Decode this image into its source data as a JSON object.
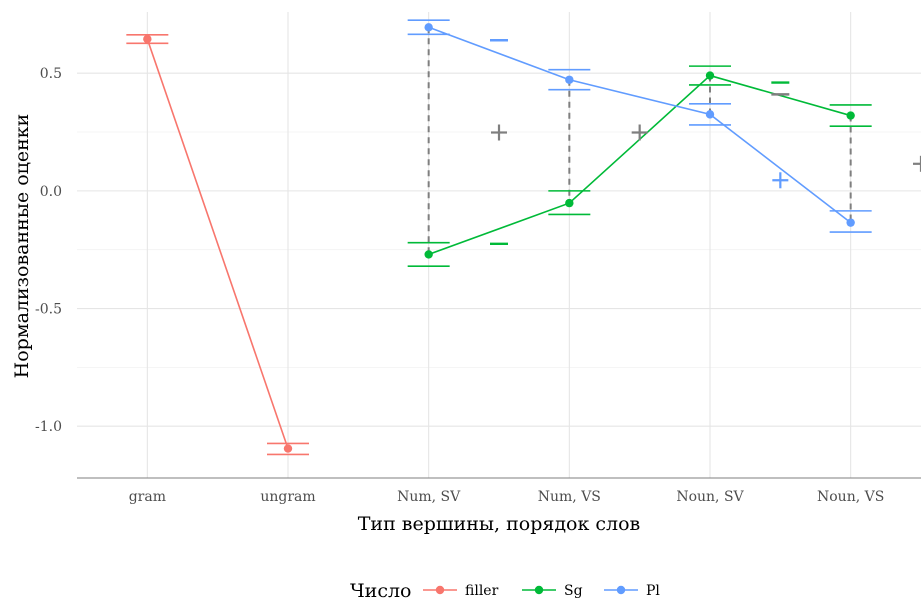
{
  "chart_data": {
    "type": "line",
    "xlabel": "Тип вершины, порядок слов",
    "ylabel": "Нормализованные оценки",
    "categories": [
      "gram",
      "ungram",
      "Num, SV",
      "Num, VS",
      "Noun, SV",
      "Noun, VS"
    ],
    "ylim": [
      -1.22,
      0.76
    ],
    "yticks": [
      -1.0,
      -0.5,
      0.0,
      0.5
    ],
    "ytick_labels": [
      "-1.0",
      "-0.5",
      "0.0",
      "0.5"
    ],
    "grid": true,
    "legend": {
      "title": "Число",
      "placement": "bottom"
    },
    "series": [
      {
        "name": "filler",
        "color": "#F8766D",
        "points": [
          {
            "x": "gram",
            "y": 0.645,
            "err_low": 0.627,
            "err_high": 0.663
          },
          {
            "x": "ungram",
            "y": -1.095,
            "err_low": -1.12,
            "err_high": -1.073
          }
        ]
      },
      {
        "name": "Sg",
        "color": "#00BA38",
        "points": [
          {
            "x": "Num, SV",
            "y": -0.27,
            "err_low": -0.32,
            "err_high": -0.22
          },
          {
            "x": "Num, VS",
            "y": -0.052,
            "err_low": -0.1,
            "err_high": 0.0
          },
          {
            "x": "Noun, SV",
            "y": 0.49,
            "err_low": 0.45,
            "err_high": 0.53
          },
          {
            "x": "Noun, VS",
            "y": 0.32,
            "err_low": 0.275,
            "err_high": 0.365
          }
        ]
      },
      {
        "name": "Pl",
        "color": "#619CFF",
        "points": [
          {
            "x": "Num, SV",
            "y": 0.695,
            "err_low": 0.665,
            "err_high": 0.725
          },
          {
            "x": "Num, VS",
            "y": 0.472,
            "err_low": 0.43,
            "err_high": 0.515
          },
          {
            "x": "Noun, SV",
            "y": 0.325,
            "err_low": 0.28,
            "err_high": 0.37
          },
          {
            "x": "Noun, VS",
            "y": -0.135,
            "err_low": -0.175,
            "err_high": -0.085
          }
        ]
      }
    ],
    "connectors": [
      {
        "x": "Num, SV",
        "from": 0.695,
        "to": -0.27,
        "color": "#7f7f7f"
      },
      {
        "x": "Num, VS",
        "from": 0.472,
        "to": -0.052,
        "color": "#7f7f7f"
      },
      {
        "x": "Noun, SV",
        "from": 0.49,
        "to": 0.325,
        "color": "#7f7f7f"
      },
      {
        "x": "Noun, VS",
        "from": 0.32,
        "to": -0.135,
        "color": "#7f7f7f"
      }
    ],
    "markers": [
      {
        "symbol": "-",
        "x": "Num, SV",
        "y": 0.64,
        "color": "#619CFF"
      },
      {
        "symbol": "-",
        "x": "Num, SV",
        "y": -0.225,
        "color": "#00BA38"
      },
      {
        "symbol": "+",
        "x": "Num, SV",
        "y": 0.248,
        "color": "#7f7f7f"
      },
      {
        "symbol": "+",
        "x": "Num, VS",
        "y": 0.248,
        "color": "#7f7f7f"
      },
      {
        "symbol": "-",
        "x": "Noun, SV",
        "y": 0.41,
        "color": "#7f7f7f"
      },
      {
        "symbol": "-",
        "x": "Noun, SV",
        "y": 0.46,
        "color": "#00BA38"
      },
      {
        "symbol": "+",
        "x": "Noun, SV",
        "y": 0.045,
        "color": "#619CFF"
      },
      {
        "symbol": "+",
        "x": "Noun, VS",
        "y": 0.115,
        "color": "#7f7f7f"
      }
    ]
  }
}
